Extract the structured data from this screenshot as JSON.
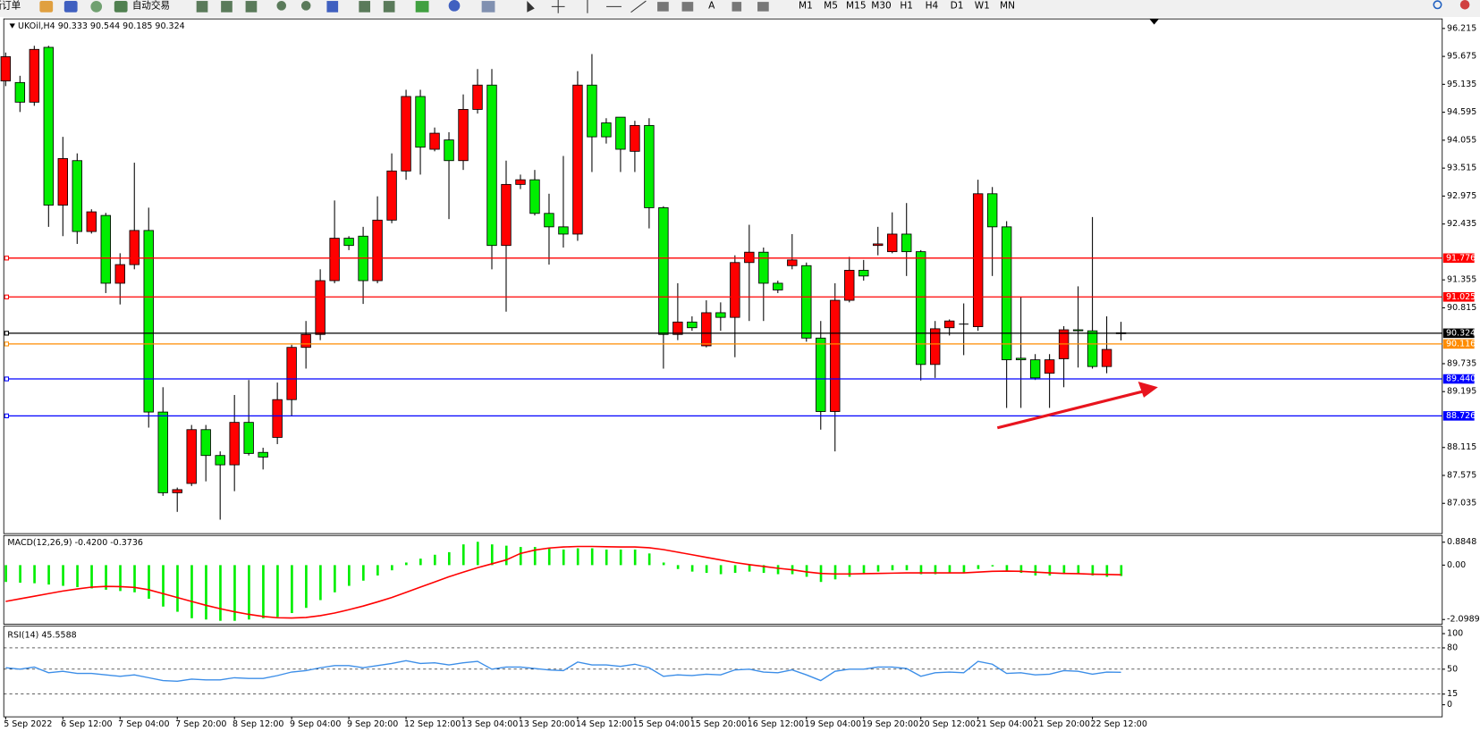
{
  "toolbar": {
    "new_order": "新订单",
    "auto_trading": "自动交易",
    "text_tool": "A",
    "timeframes": [
      "M1",
      "M5",
      "M15",
      "M30",
      "H1",
      "H4",
      "D1",
      "W1",
      "MN"
    ]
  },
  "chart_data": [
    {
      "type": "candlestick",
      "title": "UKOil,H4 90.333 90.544 90.185 90.324",
      "categories": [
        "5 Sep 2022",
        null,
        null,
        null,
        "6 Sep 12:00",
        null,
        null,
        null,
        "7 Sep 04:00",
        null,
        null,
        null,
        "7 Sep 20:00",
        null,
        null,
        null,
        "8 Sep 12:00",
        null,
        null,
        null,
        "9 Sep 04:00",
        null,
        null,
        null,
        "9 Sep 20:00",
        null,
        null,
        null,
        "12 Sep 12:00",
        null,
        null,
        null,
        "13 Sep 04:00",
        null,
        null,
        null,
        "13 Sep 20:00",
        null,
        null,
        null,
        "14 Sep 12:00",
        null,
        null,
        null,
        "15 Sep 04:00",
        null,
        null,
        null,
        "15 Sep 20:00",
        null,
        null,
        null,
        "16 Sep 12:00",
        null,
        null,
        null,
        "19 Sep 04:00",
        null,
        null,
        null,
        "19 Sep 20:00",
        null,
        null,
        null,
        "20 Sep 12:00",
        null,
        null,
        null,
        "21 Sep 04:00",
        null,
        null,
        null,
        "21 Sep 20:00",
        null,
        null,
        null,
        "22 Sep 12:00",
        null,
        null
      ],
      "open": [
        95.2,
        95.17,
        94.79,
        95.85,
        92.8,
        93.66,
        92.29,
        92.6,
        91.29,
        91.65,
        92.31,
        88.8,
        87.24,
        87.42,
        88.46,
        87.96,
        87.78,
        88.6,
        88.02,
        88.31,
        89.04,
        90.05,
        90.3,
        91.34,
        92.16,
        92.2,
        91.34,
        92.51,
        93.46,
        94.9,
        93.88,
        94.06,
        93.66,
        94.65,
        95.12,
        92.02,
        93.2,
        93.29,
        92.64,
        92.38,
        92.24,
        95.12,
        94.39,
        94.5,
        93.84,
        94.34,
        92.75,
        90.3,
        90.54,
        90.08,
        90.72,
        90.63,
        91.69,
        91.89,
        91.29,
        91.63,
        91.63,
        90.23,
        88.81,
        90.96,
        91.54,
        92.02,
        91.9,
        92.24,
        91.9,
        89.72,
        90.43,
        90.5,
        90.45,
        93.02,
        92.38,
        89.84,
        89.81,
        89.55,
        89.83,
        90.39,
        90.37,
        89.68,
        90.333
      ],
      "high": [
        95.75,
        95.3,
        95.88,
        95.88,
        94.12,
        93.8,
        92.72,
        92.65,
        91.87,
        93.62,
        92.75,
        89.28,
        87.34,
        88.55,
        88.55,
        88.04,
        89.13,
        89.42,
        88.11,
        89.37,
        90.1,
        90.56,
        91.56,
        92.89,
        92.2,
        92.38,
        92.97,
        93.8,
        95.03,
        95.03,
        94.3,
        94.21,
        94.94,
        95.43,
        95.43,
        93.66,
        93.39,
        93.48,
        93.02,
        93.75,
        95.39,
        95.72,
        94.48,
        94.5,
        94.43,
        94.48,
        92.78,
        91.29,
        90.65,
        90.96,
        90.92,
        91.83,
        92.42,
        91.98,
        91.34,
        92.24,
        91.69,
        90.56,
        91.29,
        91.8,
        91.74,
        92.38,
        92.66,
        92.84,
        91.93,
        90.56,
        90.59,
        90.9,
        93.29,
        93.15,
        92.49,
        91.03,
        89.92,
        89.92,
        90.46,
        91.23,
        92.57,
        90.65,
        90.544
      ],
      "low": [
        95.1,
        94.6,
        94.72,
        92.38,
        92.2,
        92.05,
        92.25,
        91.1,
        90.88,
        91.56,
        88.5,
        87.18,
        86.87,
        87.37,
        87.46,
        86.72,
        87.27,
        87.96,
        87.69,
        88.18,
        88.73,
        89.64,
        90.19,
        91.29,
        91.93,
        90.89,
        91.29,
        92.45,
        93.29,
        93.39,
        93.84,
        92.53,
        93.48,
        94.57,
        91.56,
        90.74,
        93.11,
        92.6,
        91.65,
        91.98,
        92.11,
        93.44,
        93.99,
        93.44,
        93.44,
        92.35,
        89.64,
        90.19,
        90.37,
        90.05,
        90.37,
        89.86,
        90.56,
        90.56,
        91.1,
        91.56,
        90.16,
        88.46,
        88.04,
        90.92,
        91.34,
        91.83,
        91.87,
        91.43,
        89.41,
        89.46,
        90.28,
        89.9,
        90.37,
        91.43,
        88.88,
        88.88,
        89.42,
        88.88,
        89.28,
        89.66,
        89.64,
        89.55,
        90.185
      ],
      "close": [
        95.67,
        94.79,
        95.81,
        92.8,
        93.7,
        92.29,
        92.67,
        91.29,
        91.65,
        92.31,
        88.8,
        87.24,
        87.3,
        88.46,
        87.96,
        87.78,
        88.6,
        88.0,
        87.93,
        89.04,
        90.05,
        90.3,
        91.34,
        92.16,
        92.02,
        91.34,
        92.51,
        93.46,
        94.9,
        93.92,
        94.19,
        93.66,
        94.65,
        95.12,
        92.02,
        93.2,
        93.29,
        92.64,
        92.38,
        92.24,
        95.12,
        94.12,
        94.12,
        93.88,
        94.34,
        92.75,
        90.3,
        90.54,
        90.43,
        90.72,
        90.63,
        91.69,
        91.89,
        91.29,
        91.16,
        91.74,
        90.23,
        88.81,
        90.96,
        91.54,
        91.43,
        92.05,
        92.24,
        91.9,
        89.72,
        90.41,
        90.56,
        90.5,
        93.02,
        92.38,
        89.81,
        89.81,
        89.46,
        89.81,
        90.39,
        90.37,
        89.68,
        90.01,
        90.324
      ],
      "up_color": "#ff0000",
      "down_color": "#00ee00",
      "ylim": [
        86.45,
        96.4
      ],
      "yticks": [
        96.215,
        95.675,
        95.135,
        94.595,
        94.055,
        93.515,
        92.975,
        92.435,
        91.355,
        90.815,
        89.735,
        89.195,
        88.115,
        87.575,
        87.035
      ],
      "levels": [
        {
          "value": 91.776,
          "label": "91.776",
          "color": "#ff0000"
        },
        {
          "value": 91.025,
          "label": "91.025",
          "color": "#ff0000"
        },
        {
          "value": 90.324,
          "label": "90.324",
          "color": "#000000"
        },
        {
          "value": 90.116,
          "label": "90.116",
          "color": "#ff8c00"
        },
        {
          "value": 89.44,
          "label": "89.440",
          "color": "#0000ff"
        },
        {
          "value": 88.726,
          "label": "88.726",
          "color": "#0000ff"
        }
      ]
    },
    {
      "type": "macd",
      "title": "MACD(12,26,9) -0.4200 -0.3736",
      "series": [
        {
          "color": "#00ee00",
          "values": [
            -0.65,
            -0.68,
            -0.7,
            -0.75,
            -0.8,
            -0.85,
            -0.9,
            -0.95,
            -1.0,
            -1.05,
            -1.3,
            -1.6,
            -1.8,
            -2.05,
            -2.1,
            -2.15,
            -2.15,
            -2.1,
            -2.05,
            -2.0,
            -1.85,
            -1.65,
            -1.35,
            -1.05,
            -0.8,
            -0.6,
            -0.4,
            -0.2,
            0.1,
            0.25,
            0.4,
            0.5,
            0.8,
            0.9,
            0.8,
            0.75,
            0.7,
            0.7,
            0.65,
            0.6,
            0.65,
            0.65,
            0.6,
            0.6,
            0.6,
            0.45,
            0.1,
            -0.15,
            -0.25,
            -0.3,
            -0.35,
            -0.3,
            -0.25,
            -0.3,
            -0.35,
            -0.35,
            -0.45,
            -0.65,
            -0.55,
            -0.45,
            -0.35,
            -0.25,
            -0.2,
            -0.2,
            -0.35,
            -0.35,
            -0.3,
            -0.3,
            -0.15,
            -0.05,
            -0.25,
            -0.3,
            -0.4,
            -0.4,
            -0.35,
            -0.35,
            -0.4,
            -0.45,
            -0.42
          ]
        },
        {
          "color": "#ff0000",
          "values": [
            -1.4,
            -1.3,
            -1.2,
            -1.1,
            -1.0,
            -0.92,
            -0.85,
            -0.82,
            -0.83,
            -0.86,
            -0.95,
            -1.1,
            -1.25,
            -1.4,
            -1.55,
            -1.68,
            -1.8,
            -1.9,
            -1.98,
            -2.03,
            -2.04,
            -2.02,
            -1.95,
            -1.85,
            -1.72,
            -1.58,
            -1.42,
            -1.25,
            -1.05,
            -0.85,
            -0.65,
            -0.45,
            -0.27,
            -0.1,
            0.05,
            0.2,
            0.45,
            0.58,
            0.66,
            0.7,
            0.72,
            0.72,
            0.71,
            0.7,
            0.7,
            0.67,
            0.6,
            0.5,
            0.4,
            0.3,
            0.2,
            0.1,
            0.02,
            -0.05,
            -0.12,
            -0.18,
            -0.26,
            -0.32,
            -0.34,
            -0.34,
            -0.33,
            -0.32,
            -0.31,
            -0.3,
            -0.3,
            -0.3,
            -0.3,
            -0.3,
            -0.27,
            -0.24,
            -0.23,
            -0.24,
            -0.27,
            -0.3,
            -0.32,
            -0.33,
            -0.35,
            -0.36,
            -0.3736
          ]
        }
      ],
      "ylim": [
        -2.283,
        1.143
      ],
      "yticks": [
        0.8848,
        {
          "value": 0,
          "label": "0.00"
        },
        -2.0989
      ]
    },
    {
      "type": "rsi",
      "title": "RSI(14) 45.5588",
      "color": "#3c8ee8",
      "values": [
        52,
        50,
        53,
        45,
        47,
        44,
        44,
        42,
        40,
        42,
        38,
        34,
        33,
        36,
        35,
        35,
        38,
        37,
        37,
        41,
        46,
        48,
        52,
        55,
        55,
        52,
        55,
        58,
        62,
        58,
        59,
        56,
        59,
        61,
        50,
        53,
        53,
        51,
        49,
        48,
        60,
        56,
        56,
        54,
        57,
        52,
        40,
        42,
        41,
        43,
        42,
        49,
        50,
        46,
        45,
        49,
        42,
        34,
        47,
        50,
        50,
        53,
        53,
        51,
        40,
        45,
        46,
        45,
        61,
        57,
        44,
        45,
        42,
        43,
        48,
        47,
        43,
        46,
        45.5588
      ],
      "ylim": [
        -17,
        110.5
      ],
      "yticks": [
        100,
        80,
        50,
        15,
        0
      ],
      "levels": [
        80,
        50,
        15
      ]
    }
  ]
}
